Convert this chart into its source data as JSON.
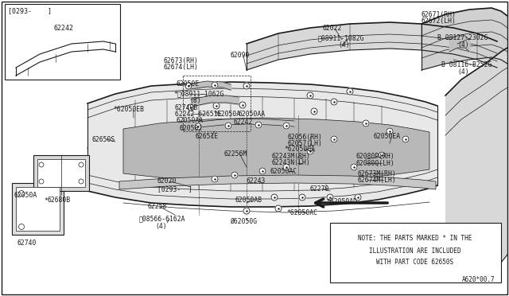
{
  "bg_color": "#ffffff",
  "line_color": "#1a1a1a",
  "note_text_line1": "NOTE: THE PARTS MARKED * IN THE",
  "note_text_line2": "ILLUSTRATION ARE INCLUDED",
  "note_text_line3": "WITH PART CODE 62650S",
  "diagram_num": "A620*00.7"
}
